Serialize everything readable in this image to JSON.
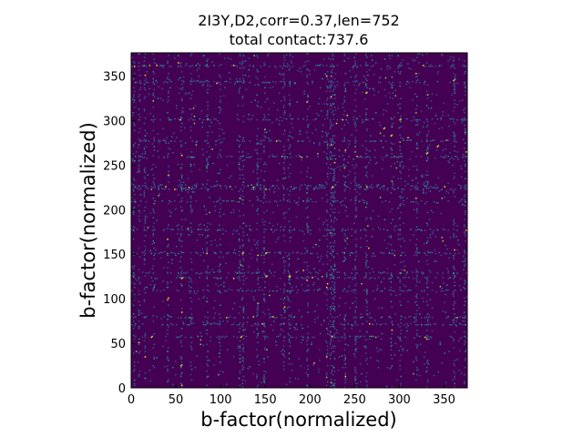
{
  "chart_data": {
    "type": "heatmap",
    "title": "2I3Y,D2,corr=0.37,len=752",
    "subtitle": "total contact:737.6",
    "xlabel": "b-factor(normalized)",
    "ylabel": "b-factor(normalized)",
    "xlim": [
      0,
      376
    ],
    "ylim": [
      0,
      376
    ],
    "xticks": [
      0,
      50,
      100,
      150,
      200,
      250,
      300,
      350
    ],
    "yticks": [
      0,
      50,
      100,
      150,
      200,
      250,
      300,
      350
    ],
    "colormap": "viridis",
    "background_color": "#440154",
    "dense_rows": [
      56,
      70,
      78,
      108,
      122,
      128,
      150,
      176,
      208,
      222,
      224,
      226,
      258,
      276,
      300,
      342,
      360
    ],
    "dense_cols": [
      2,
      8,
      14,
      24,
      40,
      55,
      66,
      84,
      98,
      120,
      124,
      140,
      148,
      170,
      176,
      196,
      218,
      222,
      224,
      226,
      238,
      250,
      262,
      290,
      300,
      318,
      330,
      360,
      372
    ],
    "hot_spots": [
      {
        "x": 22,
        "y": 56
      },
      {
        "x": 55,
        "y": 24
      },
      {
        "x": 122,
        "y": 56
      },
      {
        "x": 150,
        "y": 150
      },
      {
        "x": 124,
        "y": 150
      },
      {
        "x": 176,
        "y": 124
      },
      {
        "x": 224,
        "y": 224
      },
      {
        "x": 290,
        "y": 282
      },
      {
        "x": 300,
        "y": 300
      },
      {
        "x": 330,
        "y": 262
      },
      {
        "x": 342,
        "y": 270
      },
      {
        "x": 360,
        "y": 344
      },
      {
        "x": 56,
        "y": 122
      },
      {
        "x": 150,
        "y": 124
      },
      {
        "x": 262,
        "y": 330
      },
      {
        "x": 282,
        "y": 290
      }
    ]
  }
}
